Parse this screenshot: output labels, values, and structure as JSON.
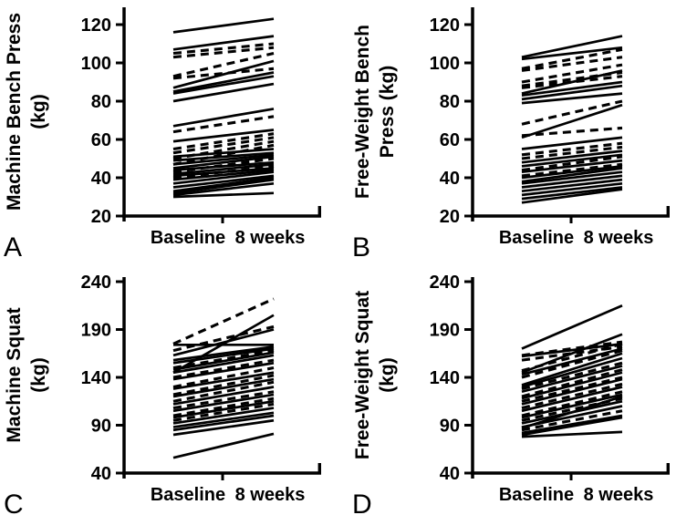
{
  "figure": {
    "background_color": "#ffffff",
    "ink_color": "#000000",
    "panel_letters": [
      "A",
      "B",
      "C",
      "D"
    ]
  },
  "chart_data": [
    {
      "panel": "A",
      "type": "line",
      "title": "",
      "ylabel_lines": [
        "Machine Bench Press",
        "(kg)"
      ],
      "unit": "kg",
      "x_categories": [
        "Baseline",
        "8 weeks"
      ],
      "yticks": [
        20,
        40,
        60,
        80,
        100,
        120
      ],
      "ylim": [
        20,
        128
      ],
      "grid": false,
      "legend": "none",
      "lines": [
        {
          "baseline": 116,
          "week8": 123,
          "dashed": false
        },
        {
          "baseline": 107,
          "week8": 114,
          "dashed": false
        },
        {
          "baseline": 105,
          "week8": 110,
          "dashed": true
        },
        {
          "baseline": 103,
          "week8": 108,
          "dashed": true
        },
        {
          "baseline": 93,
          "week8": 105,
          "dashed": true
        },
        {
          "baseline": 92,
          "week8": 97,
          "dashed": true
        },
        {
          "baseline": 87,
          "week8": 101,
          "dashed": false
        },
        {
          "baseline": 85,
          "week8": 95,
          "dashed": false
        },
        {
          "baseline": 84,
          "week8": 93,
          "dashed": false
        },
        {
          "baseline": 80,
          "week8": 89,
          "dashed": false
        },
        {
          "baseline": 67,
          "week8": 76,
          "dashed": false
        },
        {
          "baseline": 64,
          "week8": 72,
          "dashed": true
        },
        {
          "baseline": 59,
          "week8": 65,
          "dashed": false
        },
        {
          "baseline": 55,
          "week8": 63,
          "dashed": true
        },
        {
          "baseline": 53,
          "week8": 61,
          "dashed": true
        },
        {
          "baseline": 50,
          "week8": 59,
          "dashed": true
        },
        {
          "baseline": 47,
          "week8": 57,
          "dashed": true
        },
        {
          "baseline": 51,
          "week8": 55,
          "dashed": false
        },
        {
          "baseline": 49,
          "week8": 53,
          "dashed": false
        },
        {
          "baseline": 47,
          "week8": 52,
          "dashed": false
        },
        {
          "baseline": 45,
          "week8": 51,
          "dashed": false
        },
        {
          "baseline": 43,
          "week8": 50,
          "dashed": true
        },
        {
          "baseline": 44,
          "week8": 48,
          "dashed": false
        },
        {
          "baseline": 42,
          "week8": 47,
          "dashed": false
        },
        {
          "baseline": 40,
          "week8": 46,
          "dashed": true
        },
        {
          "baseline": 41,
          "week8": 45,
          "dashed": false
        },
        {
          "baseline": 39,
          "week8": 44,
          "dashed": false
        },
        {
          "baseline": 37,
          "week8": 43,
          "dashed": false
        },
        {
          "baseline": 35,
          "week8": 41,
          "dashed": false
        },
        {
          "baseline": 33,
          "week8": 40,
          "dashed": false
        },
        {
          "baseline": 32,
          "week8": 39,
          "dashed": false
        },
        {
          "baseline": 31,
          "week8": 37,
          "dashed": false
        },
        {
          "baseline": 30,
          "week8": 32,
          "dashed": false
        }
      ]
    },
    {
      "panel": "B",
      "type": "line",
      "title": "",
      "ylabel_lines": [
        "Free-Weight Bench",
        "Press (kg)"
      ],
      "unit": "kg",
      "x_categories": [
        "Baseline",
        "8 weeks"
      ],
      "yticks": [
        20,
        40,
        60,
        80,
        100,
        120
      ],
      "ylim": [
        20,
        128
      ],
      "grid": false,
      "legend": "none",
      "lines": [
        {
          "baseline": 103,
          "week8": 114,
          "dashed": false
        },
        {
          "baseline": 102,
          "week8": 108,
          "dashed": false
        },
        {
          "baseline": 97,
          "week8": 107,
          "dashed": true
        },
        {
          "baseline": 96,
          "week8": 103,
          "dashed": true
        },
        {
          "baseline": 90,
          "week8": 99,
          "dashed": true
        },
        {
          "baseline": 88,
          "week8": 95,
          "dashed": true
        },
        {
          "baseline": 87,
          "week8": 93,
          "dashed": true
        },
        {
          "baseline": 84,
          "week8": 96,
          "dashed": false
        },
        {
          "baseline": 83,
          "week8": 90,
          "dashed": false
        },
        {
          "baseline": 81,
          "week8": 88,
          "dashed": false
        },
        {
          "baseline": 79,
          "week8": 84,
          "dashed": false
        },
        {
          "baseline": 68,
          "week8": 80,
          "dashed": true
        },
        {
          "baseline": 61,
          "week8": 78,
          "dashed": false
        },
        {
          "baseline": 62,
          "week8": 66,
          "dashed": true
        },
        {
          "baseline": 55,
          "week8": 61,
          "dashed": false
        },
        {
          "baseline": 52,
          "week8": 58,
          "dashed": true
        },
        {
          "baseline": 50,
          "week8": 56,
          "dashed": true
        },
        {
          "baseline": 48,
          "week8": 54,
          "dashed": false
        },
        {
          "baseline": 46,
          "week8": 52,
          "dashed": false
        },
        {
          "baseline": 44,
          "week8": 51,
          "dashed": true
        },
        {
          "baseline": 43,
          "week8": 49,
          "dashed": false
        },
        {
          "baseline": 41,
          "week8": 47,
          "dashed": true
        },
        {
          "baseline": 40,
          "week8": 46,
          "dashed": false
        },
        {
          "baseline": 38,
          "week8": 45,
          "dashed": false
        },
        {
          "baseline": 37,
          "week8": 43,
          "dashed": false
        },
        {
          "baseline": 35,
          "week8": 41,
          "dashed": false
        },
        {
          "baseline": 33,
          "week8": 39,
          "dashed": false
        },
        {
          "baseline": 31,
          "week8": 37,
          "dashed": false
        },
        {
          "baseline": 29,
          "week8": 35,
          "dashed": false
        },
        {
          "baseline": 27,
          "week8": 34,
          "dashed": false
        }
      ]
    },
    {
      "panel": "C",
      "type": "line",
      "title": "",
      "ylabel_lines": [
        "Machine Squat",
        "(kg)"
      ],
      "unit": "kg",
      "x_categories": [
        "Baseline",
        "8 weeks"
      ],
      "yticks": [
        40,
        90,
        140,
        190,
        240
      ],
      "ylim": [
        40,
        245
      ],
      "grid": false,
      "legend": "none",
      "lines": [
        {
          "baseline": 175,
          "week8": 222,
          "dashed": true
        },
        {
          "baseline": 168,
          "week8": 193,
          "dashed": true
        },
        {
          "baseline": 145,
          "week8": 205,
          "dashed": false
        },
        {
          "baseline": 163,
          "week8": 190,
          "dashed": false
        },
        {
          "baseline": 174,
          "week8": 174,
          "dashed": false
        },
        {
          "baseline": 158,
          "week8": 172,
          "dashed": false
        },
        {
          "baseline": 155,
          "week8": 170,
          "dashed": false
        },
        {
          "baseline": 150,
          "week8": 168,
          "dashed": true
        },
        {
          "baseline": 148,
          "week8": 166,
          "dashed": false
        },
        {
          "baseline": 145,
          "week8": 163,
          "dashed": false
        },
        {
          "baseline": 140,
          "week8": 158,
          "dashed": true
        },
        {
          "baseline": 138,
          "week8": 155,
          "dashed": false
        },
        {
          "baseline": 130,
          "week8": 150,
          "dashed": true
        },
        {
          "baseline": 128,
          "week8": 145,
          "dashed": false
        },
        {
          "baseline": 122,
          "week8": 142,
          "dashed": true
        },
        {
          "baseline": 120,
          "week8": 138,
          "dashed": false
        },
        {
          "baseline": 115,
          "week8": 135,
          "dashed": true
        },
        {
          "baseline": 112,
          "week8": 130,
          "dashed": false
        },
        {
          "baseline": 108,
          "week8": 125,
          "dashed": true
        },
        {
          "baseline": 105,
          "week8": 122,
          "dashed": false
        },
        {
          "baseline": 100,
          "week8": 118,
          "dashed": true
        },
        {
          "baseline": 98,
          "week8": 115,
          "dashed": false
        },
        {
          "baseline": 95,
          "week8": 112,
          "dashed": true
        },
        {
          "baseline": 92,
          "week8": 108,
          "dashed": false
        },
        {
          "baseline": 88,
          "week8": 103,
          "dashed": false
        },
        {
          "baseline": 85,
          "week8": 100,
          "dashed": false
        },
        {
          "baseline": 80,
          "week8": 95,
          "dashed": false
        },
        {
          "baseline": 56,
          "week8": 81,
          "dashed": false
        }
      ]
    },
    {
      "panel": "D",
      "type": "line",
      "title": "",
      "ylabel_lines": [
        "Free-Weight Squat",
        "(kg)"
      ],
      "unit": "kg",
      "x_categories": [
        "Baseline",
        "8 weeks"
      ],
      "yticks": [
        40,
        90,
        140,
        190,
        240
      ],
      "ylim": [
        40,
        245
      ],
      "grid": false,
      "legend": "none",
      "lines": [
        {
          "baseline": 170,
          "week8": 215,
          "dashed": false
        },
        {
          "baseline": 163,
          "week8": 177,
          "dashed": true
        },
        {
          "baseline": 162,
          "week8": 175,
          "dashed": false
        },
        {
          "baseline": 158,
          "week8": 172,
          "dashed": true
        },
        {
          "baseline": 145,
          "week8": 185,
          "dashed": false
        },
        {
          "baseline": 147,
          "week8": 175,
          "dashed": true
        },
        {
          "baseline": 143,
          "week8": 170,
          "dashed": false
        },
        {
          "baseline": 140,
          "week8": 168,
          "dashed": true
        },
        {
          "baseline": 132,
          "week8": 165,
          "dashed": false
        },
        {
          "baseline": 130,
          "week8": 160,
          "dashed": false
        },
        {
          "baseline": 128,
          "week8": 155,
          "dashed": true
        },
        {
          "baseline": 125,
          "week8": 152,
          "dashed": false
        },
        {
          "baseline": 120,
          "week8": 148,
          "dashed": true
        },
        {
          "baseline": 118,
          "week8": 145,
          "dashed": false
        },
        {
          "baseline": 115,
          "week8": 140,
          "dashed": true
        },
        {
          "baseline": 112,
          "week8": 138,
          "dashed": false
        },
        {
          "baseline": 108,
          "week8": 133,
          "dashed": true
        },
        {
          "baseline": 105,
          "week8": 130,
          "dashed": false
        },
        {
          "baseline": 100,
          "week8": 125,
          "dashed": true
        },
        {
          "baseline": 98,
          "week8": 122,
          "dashed": false
        },
        {
          "baseline": 95,
          "week8": 118,
          "dashed": true
        },
        {
          "baseline": 92,
          "week8": 115,
          "dashed": false
        },
        {
          "baseline": 88,
          "week8": 110,
          "dashed": false
        },
        {
          "baseline": 87,
          "week8": 120,
          "dashed": false
        },
        {
          "baseline": 85,
          "week8": 105,
          "dashed": true
        },
        {
          "baseline": 82,
          "week8": 100,
          "dashed": false
        },
        {
          "baseline": 80,
          "week8": 98,
          "dashed": false
        },
        {
          "baseline": 78,
          "week8": 83,
          "dashed": false
        }
      ]
    }
  ]
}
